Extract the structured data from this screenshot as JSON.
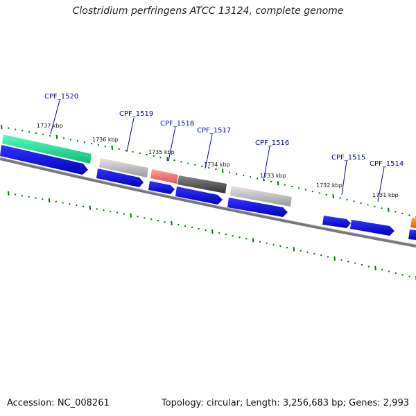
{
  "title": "Clostridium perfringens ATCC 13124, complete genome",
  "footer": {
    "accession": "Accession: NC_008261",
    "topology": "Topology: circular; Length: 3,256,683 bp; Genes: 2,993"
  },
  "genes": [
    "CPF_1520",
    "CPF_1519",
    "CPF_1518",
    "CPF_1517",
    "CPF_1516",
    "CPF_1515",
    "CPF_1514"
  ],
  "kbp_ticks": [
    "1737 kbp",
    "1736 kbp",
    "1735 kbp",
    "1734 kbp",
    "1733 kbp",
    "1732 kbp",
    "1731 kbp"
  ],
  "colors": {
    "cds_arrow": "#0000ee",
    "ticks": "#007700",
    "backbone": "#777777",
    "label": "#0000aa",
    "feat_teal": "#22dd99",
    "feat_gray": "#bbbbbb",
    "feat_red": "#ee7777",
    "feat_dark": "#555555",
    "feat_orange": "#ff8800"
  }
}
